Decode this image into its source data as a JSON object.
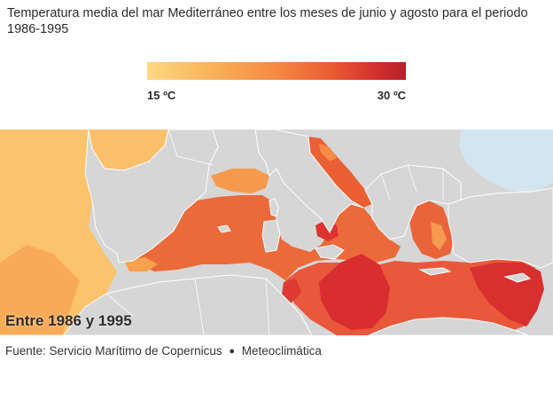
{
  "title": "Temperatura media del mar Mediterráneo entre los meses de junio y agosto para el periodo 1986-1995",
  "legend": {
    "min_label": "15 ºC",
    "max_label": "30 ºC",
    "min_value": 15,
    "max_value": 30,
    "colors": [
      "#fcd982",
      "#f9b25a",
      "#f58a43",
      "#ea5a33",
      "#d5302c",
      "#b5202c"
    ]
  },
  "map": {
    "period_label": "Entre 1986 y 1995",
    "land_color": "#d6d6d6",
    "border_color": "#ffffff",
    "black_sea_color": "#d3e6ef"
  },
  "source": {
    "text": "Fuente: Servicio Marítimo de Copernicus",
    "separator": "●",
    "partner": "Meteoclimática"
  }
}
